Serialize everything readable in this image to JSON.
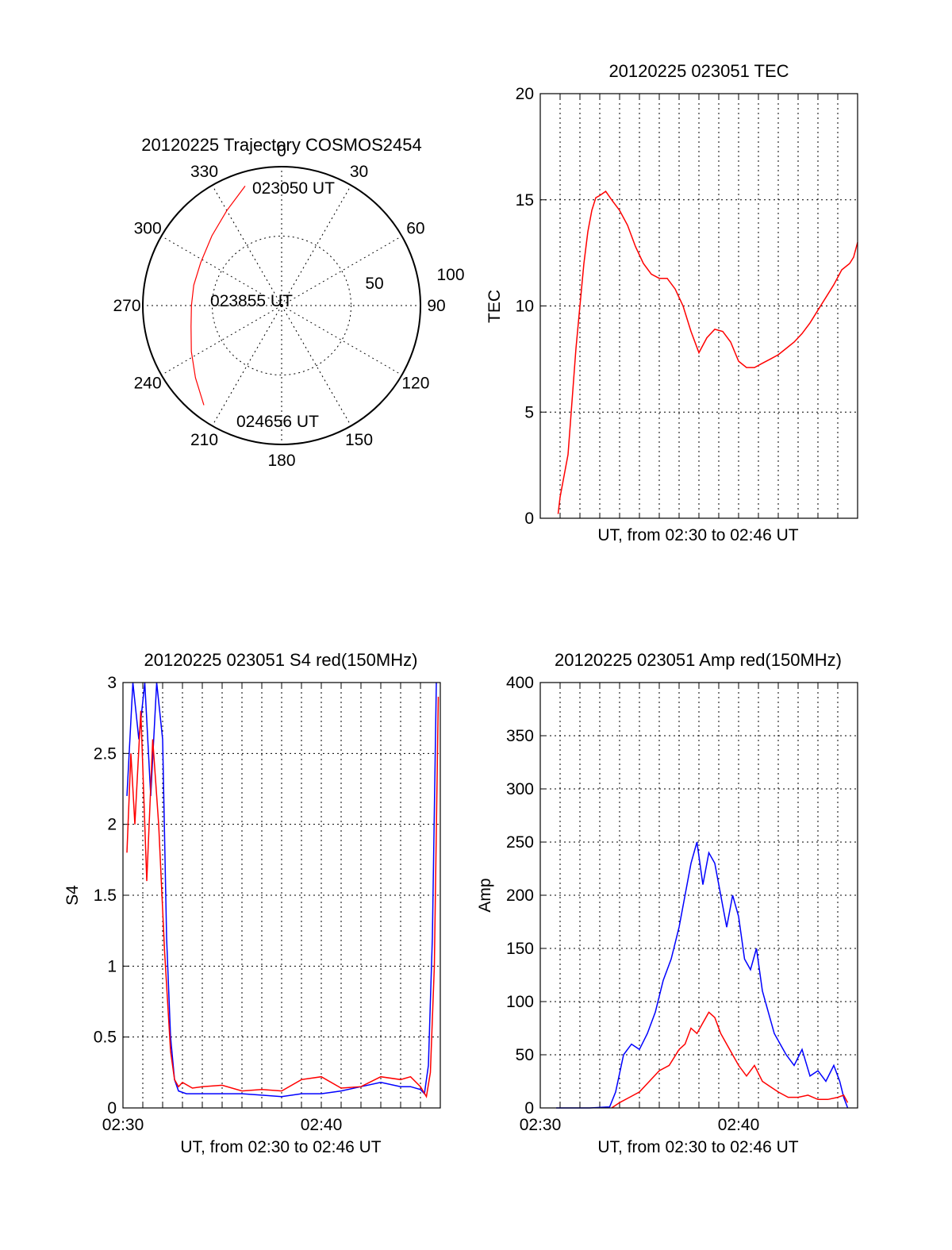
{
  "colors": {
    "red": "#ff0000",
    "blue": "#0000ff",
    "axis": "#000000"
  },
  "polar": {
    "title": "20120225 Trajectory COSMOS2454",
    "angle_labels": [
      "0",
      "30",
      "60",
      "90",
      "120",
      "150",
      "180",
      "210",
      "240",
      "270",
      "300",
      "330"
    ],
    "angles": [
      0,
      30,
      60,
      90,
      120,
      150,
      180,
      210,
      240,
      270,
      300,
      330
    ],
    "radius_label_outer": "100",
    "radius_label_inner": "50",
    "ring_values": [
      50,
      100
    ],
    "start_label": "023050 UT",
    "mid_label": "023855 UT",
    "end_label": "024656 UT",
    "trajectory": [
      {
        "az": 343,
        "zen": 90
      },
      {
        "az": 330,
        "zen": 79
      },
      {
        "az": 315,
        "zen": 71
      },
      {
        "az": 298,
        "zen": 66
      },
      {
        "az": 283,
        "zen": 65
      },
      {
        "az": 270,
        "zen": 65
      },
      {
        "az": 257,
        "zen": 67
      },
      {
        "az": 243,
        "zen": 73
      },
      {
        "az": 230,
        "zen": 81
      },
      {
        "az": 218,
        "zen": 91
      }
    ]
  },
  "chart_data": [
    {
      "type": "line",
      "title": "20120225 023051 TEC",
      "xlabel": "UT, from 02:30 to 02:46 UT",
      "ylabel": "TEC",
      "xlim_minutes": [
        0,
        16
      ],
      "ylim": [
        0,
        20
      ],
      "yticks": [
        "0",
        "5",
        "10",
        "15",
        "20"
      ],
      "grid": true,
      "series": [
        {
          "color": "#ff0000",
          "x_minutes": [
            0.9,
            1.0,
            1.2,
            1.4,
            1.6,
            1.8,
            2.0,
            2.2,
            2.4,
            2.6,
            2.8,
            3.0,
            3.3,
            3.6,
            4.0,
            4.4,
            4.8,
            5.2,
            5.6,
            6.0,
            6.4,
            6.8,
            7.2,
            7.6,
            8.0,
            8.4,
            8.8,
            9.2,
            9.6,
            10.0,
            10.4,
            10.8,
            11.2,
            11.6,
            12.0,
            12.4,
            12.8,
            13.2,
            13.6,
            14.0,
            14.4,
            14.8,
            15.2,
            15.6,
            15.8,
            16.0
          ],
          "y": [
            0.2,
            1.0,
            2.0,
            3.0,
            5.5,
            8.0,
            10.0,
            12.0,
            13.5,
            14.5,
            15.1,
            15.2,
            15.4,
            15.0,
            14.5,
            13.8,
            12.8,
            12.0,
            11.5,
            11.3,
            11.3,
            10.8,
            10.0,
            8.8,
            7.8,
            8.5,
            8.9,
            8.8,
            8.3,
            7.4,
            7.1,
            7.1,
            7.3,
            7.5,
            7.7,
            8.0,
            8.3,
            8.7,
            9.2,
            9.8,
            10.4,
            11.0,
            11.7,
            12.0,
            12.3,
            13.0
          ]
        }
      ]
    },
    {
      "type": "line",
      "title": "20120225 023051 S4 red(150MHz)",
      "xlabel": "UT, from 02:30 to 02:46 UT",
      "ylabel": "S4",
      "xlim_minutes": [
        0,
        16
      ],
      "ylim": [
        0,
        3
      ],
      "yticks": [
        "0",
        "0.5",
        "1",
        "1.5",
        "2",
        "2.5",
        "3"
      ],
      "xticks": [
        {
          "minute": 0,
          "label": "02:30"
        },
        {
          "minute": 10,
          "label": "02:40"
        }
      ],
      "grid": true,
      "series": [
        {
          "color": "#0000ff",
          "x_minutes": [
            0.2,
            0.5,
            0.8,
            1.1,
            1.4,
            1.7,
            2.0,
            2.2,
            2.4,
            2.6,
            2.8,
            3.2,
            3.6,
            4.0,
            5.0,
            6.0,
            7.0,
            8.0,
            9.0,
            10.0,
            11.0,
            12.0,
            13.0,
            14.0,
            14.5,
            15.0,
            15.2,
            15.4,
            15.6,
            15.8
          ],
          "y": [
            2.2,
            3.0,
            2.6,
            3.0,
            2.2,
            3.0,
            2.6,
            1.2,
            0.5,
            0.2,
            0.12,
            0.1,
            0.1,
            0.1,
            0.1,
            0.1,
            0.09,
            0.08,
            0.1,
            0.1,
            0.12,
            0.15,
            0.18,
            0.15,
            0.15,
            0.13,
            0.1,
            0.3,
            1.2,
            3.0
          ]
        },
        {
          "color": "#ff0000",
          "x_minutes": [
            0.2,
            0.4,
            0.6,
            0.9,
            1.2,
            1.5,
            1.8,
            2.1,
            2.4,
            2.6,
            2.8,
            3.0,
            3.5,
            4.0,
            5.0,
            6.0,
            7.0,
            8.0,
            9.0,
            10.0,
            11.0,
            12.0,
            13.0,
            14.0,
            14.5,
            15.0,
            15.3,
            15.5,
            15.7,
            15.9
          ],
          "y": [
            1.8,
            2.5,
            2.0,
            2.8,
            1.6,
            2.6,
            2.0,
            1.1,
            0.4,
            0.2,
            0.15,
            0.18,
            0.14,
            0.15,
            0.16,
            0.12,
            0.13,
            0.12,
            0.2,
            0.22,
            0.14,
            0.15,
            0.22,
            0.2,
            0.22,
            0.15,
            0.08,
            0.25,
            1.0,
            2.9
          ]
        }
      ]
    },
    {
      "type": "line",
      "title": "20120225 023051 Amp red(150MHz)",
      "xlabel": "UT, from 02:30 to 02:46 UT",
      "ylabel": "Amp",
      "xlim_minutes": [
        0,
        16
      ],
      "ylim": [
        0,
        400
      ],
      "yticks": [
        "0",
        "50",
        "100",
        "150",
        "200",
        "250",
        "300",
        "350",
        "400"
      ],
      "xticks": [
        {
          "minute": 0,
          "label": "02:30"
        },
        {
          "minute": 10,
          "label": "02:40"
        }
      ],
      "grid": true,
      "series": [
        {
          "color": "#0000ff",
          "x_minutes": [
            0.8,
            1.5,
            2.5,
            3.5,
            3.8,
            4.2,
            4.6,
            5.0,
            5.4,
            5.8,
            6.2,
            6.6,
            7.0,
            7.3,
            7.6,
            7.9,
            8.2,
            8.5,
            8.8,
            9.1,
            9.4,
            9.7,
            10.0,
            10.3,
            10.6,
            10.9,
            11.2,
            11.5,
            11.8,
            12.1,
            12.4,
            12.8,
            13.2,
            13.6,
            14.0,
            14.4,
            14.8,
            15.1,
            15.3,
            15.5
          ],
          "y": [
            0,
            0,
            0,
            1,
            15,
            50,
            60,
            55,
            70,
            90,
            120,
            140,
            170,
            200,
            230,
            250,
            210,
            240,
            230,
            200,
            170,
            200,
            180,
            140,
            130,
            150,
            110,
            90,
            70,
            60,
            50,
            40,
            55,
            30,
            35,
            25,
            40,
            25,
            10,
            0
          ]
        },
        {
          "color": "#ff0000",
          "x_minutes": [
            3.6,
            4.0,
            4.5,
            5.0,
            5.5,
            6.0,
            6.5,
            7.0,
            7.3,
            7.6,
            7.9,
            8.2,
            8.5,
            8.8,
            9.1,
            9.4,
            9.7,
            10.0,
            10.4,
            10.8,
            11.2,
            11.6,
            12.0,
            12.5,
            13.0,
            13.5,
            14.0,
            14.5,
            15.0,
            15.3,
            15.5
          ],
          "y": [
            0,
            5,
            10,
            15,
            25,
            35,
            40,
            55,
            60,
            75,
            70,
            80,
            90,
            85,
            70,
            60,
            50,
            40,
            30,
            40,
            25,
            20,
            15,
            10,
            10,
            12,
            8,
            8,
            10,
            12,
            5
          ]
        }
      ]
    }
  ]
}
